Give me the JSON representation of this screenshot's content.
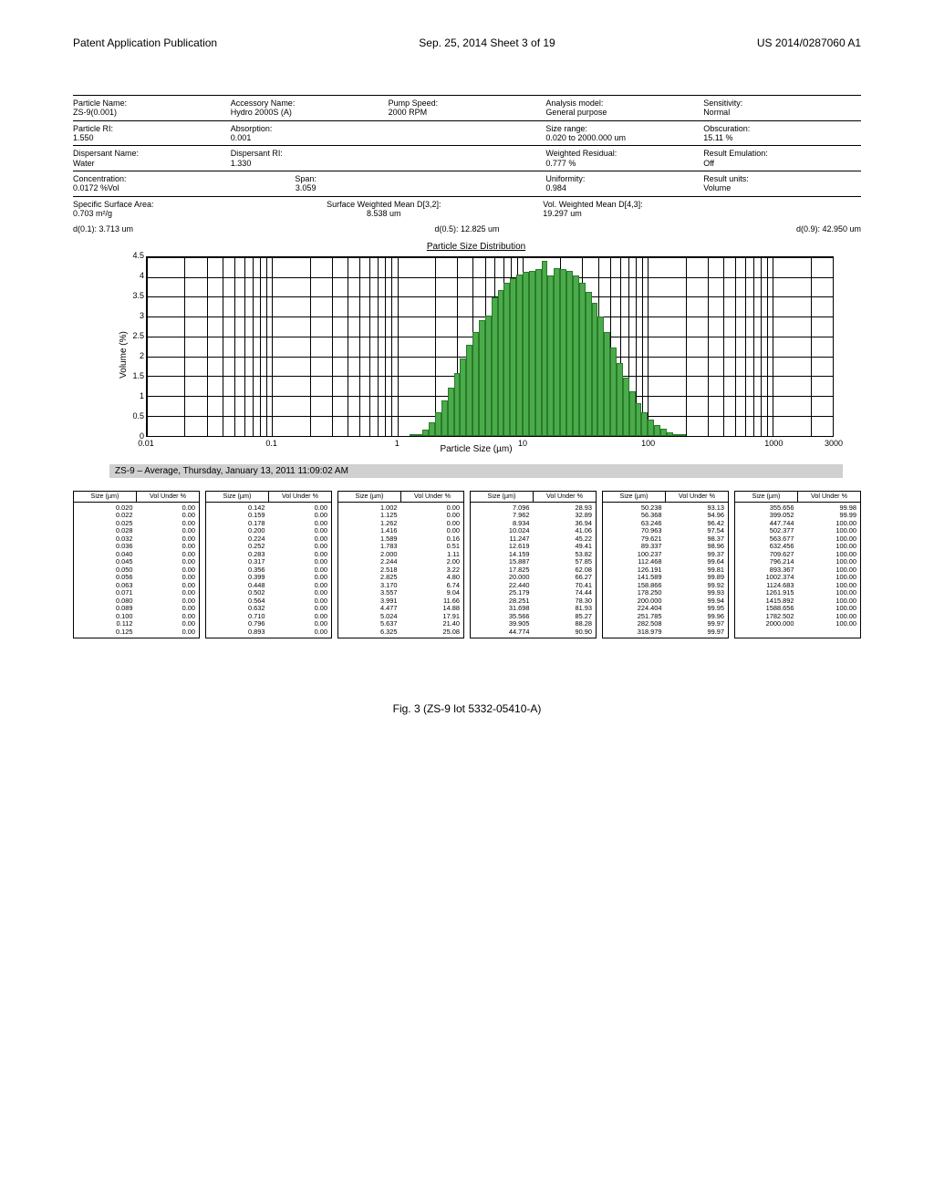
{
  "header": {
    "left": "Patent Application Publication",
    "center": "Sep. 25, 2014  Sheet 3 of 19",
    "right": "US 2014/0287060 A1"
  },
  "meta": {
    "row1": {
      "c1_label": "Particle Name:",
      "c1_val": "ZS-9(0.001)",
      "c2_label": "Accessory Name:",
      "c2_val": "Hydro 2000S (A)",
      "c3_label": "Pump Speed:",
      "c3_val": "2000    RPM",
      "c4_label": "Analysis model:",
      "c4_val": "General purpose",
      "c5_label": "Sensitivity:",
      "c5_val": "Normal"
    },
    "row2": {
      "c1_label": "Particle RI:",
      "c1_val": "1.550",
      "c2_label": "Absorption:",
      "c2_val": "0.001",
      "c4_label": "Size range:",
      "c4_val": "0.020  to  2000.000   um",
      "c5_label": "Obscuration:",
      "c5_val": "15.11   %"
    },
    "row3": {
      "c1_label": "Dispersant Name:",
      "c1_val": "Water",
      "c2_label": "Dispersant RI:",
      "c2_val": "1.330",
      "c4_label": "Weighted Residual:",
      "c4_val": "0.777    %",
      "c5_label": "Result Emulation:",
      "c5_val": "Off"
    },
    "row4": {
      "c1_label": "Concentration:",
      "c1_val": "0.0172   %Vol",
      "c2_label": "Span:",
      "c2_val": "3.059",
      "c4_label": "Uniformity:",
      "c4_val": "0.984",
      "c5_label": "Result units:",
      "c5_val": "Volume"
    },
    "row5": {
      "c1_label": "Specific Surface Area:",
      "c1_val": "0.703   m²/g",
      "c2_label": "Surface Weighted Mean D[3,2]:",
      "c2_val": "8.538    um",
      "c4_label": "Vol. Weighted Mean D[4,3]:",
      "c4_val": "19.297    um"
    }
  },
  "stats": {
    "d01": "d(0.1):   3.713   um",
    "d05": "d(0.5):   12.825      um",
    "d09": "d(0.9):   42.950           um"
  },
  "chart": {
    "title": "Particle Size Distribution",
    "y_label": "Volume (%)",
    "x_label": "Particle Size (µm)",
    "y_max": 4.5,
    "y_ticks": [
      0,
      0.5,
      1,
      1.5,
      2,
      2.5,
      3,
      3.5,
      4,
      4.5
    ],
    "x_log_min": 0.01,
    "x_log_max": 3000,
    "x_ticks": [
      {
        "v": 0.01,
        "l": "0.01"
      },
      {
        "v": 0.1,
        "l": "0.1"
      },
      {
        "v": 1,
        "l": "1"
      },
      {
        "v": 10,
        "l": "10"
      },
      {
        "v": 100,
        "l": "100"
      },
      {
        "v": 1000,
        "l": "1000"
      },
      {
        "v": 3000,
        "l": "3000"
      }
    ],
    "bars": [
      {
        "x": 1.262,
        "h": 0.0
      },
      {
        "x": 1.416,
        "h": 0.0
      },
      {
        "x": 1.589,
        "h": 0.16
      },
      {
        "x": 1.783,
        "h": 0.35
      },
      {
        "x": 2.0,
        "h": 0.6
      },
      {
        "x": 2.244,
        "h": 0.89
      },
      {
        "x": 2.518,
        "h": 1.22
      },
      {
        "x": 2.825,
        "h": 1.58
      },
      {
        "x": 3.17,
        "h": 1.94
      },
      {
        "x": 3.557,
        "h": 2.3
      },
      {
        "x": 3.991,
        "h": 2.62
      },
      {
        "x": 4.477,
        "h": 2.92
      },
      {
        "x": 5.024,
        "h": 3.03
      },
      {
        "x": 5.637,
        "h": 3.49
      },
      {
        "x": 6.325,
        "h": 3.68
      },
      {
        "x": 7.096,
        "h": 3.85
      },
      {
        "x": 7.962,
        "h": 3.96
      },
      {
        "x": 8.934,
        "h": 4.05
      },
      {
        "x": 10.024,
        "h": 4.12
      },
      {
        "x": 11.247,
        "h": 4.16
      },
      {
        "x": 12.619,
        "h": 4.19
      },
      {
        "x": 14.159,
        "h": 4.41
      },
      {
        "x": 15.887,
        "h": 4.03
      },
      {
        "x": 17.825,
        "h": 4.23
      },
      {
        "x": 20.0,
        "h": 4.19
      },
      {
        "x": 22.44,
        "h": 4.14
      },
      {
        "x": 25.179,
        "h": 4.04
      },
      {
        "x": 28.251,
        "h": 3.86
      },
      {
        "x": 31.698,
        "h": 3.63
      },
      {
        "x": 35.566,
        "h": 3.34
      },
      {
        "x": 39.905,
        "h": 3.01
      },
      {
        "x": 44.774,
        "h": 2.62
      },
      {
        "x": 50.238,
        "h": 2.23
      },
      {
        "x": 56.368,
        "h": 1.83
      },
      {
        "x": 63.246,
        "h": 1.46
      },
      {
        "x": 70.963,
        "h": 1.12
      },
      {
        "x": 79.621,
        "h": 0.83
      },
      {
        "x": 89.337,
        "h": 0.59
      },
      {
        "x": 100.237,
        "h": 0.41
      },
      {
        "x": 112.468,
        "h": 0.27
      },
      {
        "x": 126.191,
        "h": 0.17
      },
      {
        "x": 141.589,
        "h": 0.08
      },
      {
        "x": 158.866,
        "h": 0.03
      },
      {
        "x": 178.25,
        "h": 0.01
      }
    ],
    "bar_color": "#4aab4a",
    "caption": "ZS-9 – Average, Thursday, January 13, 2011 11:09:02 AM"
  },
  "tables": {
    "headers": [
      "Size (µm)",
      "Vol Under %"
    ],
    "blocks": [
      [
        [
          "0.020",
          "0.00"
        ],
        [
          "0.022",
          "0.00"
        ],
        [
          "0.025",
          "0.00"
        ],
        [
          "0.028",
          "0.00"
        ],
        [
          "0.032",
          "0.00"
        ],
        [
          "0.036",
          "0.00"
        ],
        [
          "0.040",
          "0.00"
        ],
        [
          "0.045",
          "0.00"
        ],
        [
          "0.050",
          "0.00"
        ],
        [
          "0.056",
          "0.00"
        ],
        [
          "0.063",
          "0.00"
        ],
        [
          "0.071",
          "0.00"
        ],
        [
          "0.080",
          "0.00"
        ],
        [
          "0.089",
          "0.00"
        ],
        [
          "0.100",
          "0.00"
        ],
        [
          "0.112",
          "0.00"
        ],
        [
          "0.125",
          "0.00"
        ]
      ],
      [
        [
          "0.142",
          "0.00"
        ],
        [
          "0.159",
          "0.00"
        ],
        [
          "0.178",
          "0.00"
        ],
        [
          "0.200",
          "0.00"
        ],
        [
          "0.224",
          "0.00"
        ],
        [
          "0.252",
          "0.00"
        ],
        [
          "0.283",
          "0.00"
        ],
        [
          "0.317",
          "0.00"
        ],
        [
          "0.356",
          "0.00"
        ],
        [
          "0.399",
          "0.00"
        ],
        [
          "0.448",
          "0.00"
        ],
        [
          "0.502",
          "0.00"
        ],
        [
          "0.564",
          "0.00"
        ],
        [
          "0.632",
          "0.00"
        ],
        [
          "0.710",
          "0.00"
        ],
        [
          "0.796",
          "0.00"
        ],
        [
          "0.893",
          "0.00"
        ]
      ],
      [
        [
          "1.002",
          "0.00"
        ],
        [
          "1.125",
          "0.00"
        ],
        [
          "1.262",
          "0.00"
        ],
        [
          "1.416",
          "0.00"
        ],
        [
          "1.589",
          "0.16"
        ],
        [
          "1.783",
          "0.51"
        ],
        [
          "2.000",
          "1.11"
        ],
        [
          "2.244",
          "2.00"
        ],
        [
          "2.518",
          "3.22"
        ],
        [
          "2.825",
          "4.80"
        ],
        [
          "3.170",
          "6.74"
        ],
        [
          "3.557",
          "9.04"
        ],
        [
          "3.991",
          "11.66"
        ],
        [
          "4.477",
          "14.88"
        ],
        [
          "5.024",
          "17.91"
        ],
        [
          "5.637",
          "21.40"
        ],
        [
          "6.325",
          "25.08"
        ]
      ],
      [
        [
          "7.096",
          "28.93"
        ],
        [
          "7.962",
          "32.89"
        ],
        [
          "8.934",
          "36.94"
        ],
        [
          "10.024",
          "41.06"
        ],
        [
          "11.247",
          "45.22"
        ],
        [
          "12.619",
          "49.41"
        ],
        [
          "14.159",
          "53.82"
        ],
        [
          "15.887",
          "57.85"
        ],
        [
          "17.825",
          "62.08"
        ],
        [
          "20.000",
          "66.27"
        ],
        [
          "22.440",
          "70.41"
        ],
        [
          "25.179",
          "74.44"
        ],
        [
          "28.251",
          "78.30"
        ],
        [
          "31.698",
          "81.93"
        ],
        [
          "35.566",
          "85.27"
        ],
        [
          "39.905",
          "88.28"
        ],
        [
          "44.774",
          "90.90"
        ]
      ],
      [
        [
          "50.238",
          "93.13"
        ],
        [
          "56.368",
          "94.96"
        ],
        [
          "63.246",
          "96.42"
        ],
        [
          "70.963",
          "97.54"
        ],
        [
          "79.621",
          "98.37"
        ],
        [
          "89.337",
          "98.96"
        ],
        [
          "100.237",
          "99.37"
        ],
        [
          "112.468",
          "99.64"
        ],
        [
          "126.191",
          "99.81"
        ],
        [
          "141.589",
          "99.89"
        ],
        [
          "158.866",
          "99.92"
        ],
        [
          "178.250",
          "99.93"
        ],
        [
          "200.000",
          "99.94"
        ],
        [
          "224.404",
          "99.95"
        ],
        [
          "251.785",
          "99.96"
        ],
        [
          "282.508",
          "99.97"
        ],
        [
          "318.979",
          "99.97"
        ]
      ],
      [
        [
          "355.656",
          "99.98"
        ],
        [
          "399.052",
          "99.99"
        ],
        [
          "447.744",
          "100.00"
        ],
        [
          "502.377",
          "100.00"
        ],
        [
          "563.677",
          "100.00"
        ],
        [
          "632.456",
          "100.00"
        ],
        [
          "709.627",
          "100.00"
        ],
        [
          "796.214",
          "100.00"
        ],
        [
          "893.367",
          "100.00"
        ],
        [
          "1002.374",
          "100.00"
        ],
        [
          "1124.683",
          "100.00"
        ],
        [
          "1261.915",
          "100.00"
        ],
        [
          "1415.892",
          "100.00"
        ],
        [
          "1588.656",
          "100.00"
        ],
        [
          "1782.502",
          "100.00"
        ],
        [
          "2000.000",
          "100.00"
        ]
      ]
    ]
  },
  "figure_caption": "Fig. 3 (ZS-9 lot 5332-05410-A)"
}
